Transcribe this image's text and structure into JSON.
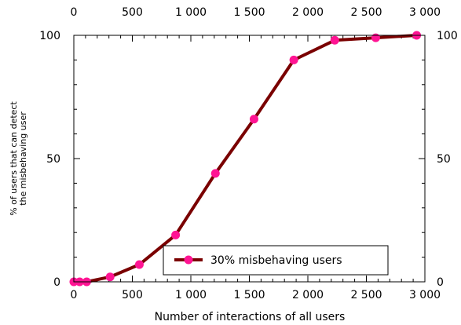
{
  "chart_data": {
    "type": "line",
    "xlabel": "Number of interactions of all users",
    "ylabel_lines": [
      "% of users that can detect",
      "the misbehaving user"
    ],
    "xlim": [
      0,
      3000
    ],
    "ylim": [
      0,
      100
    ],
    "x_ticks": [
      0,
      500,
      1000,
      1500,
      2000,
      2500,
      3000
    ],
    "x_tick_labels": [
      "0",
      "500",
      "1 000",
      "1 500",
      "2 000",
      "2 500",
      "3 000"
    ],
    "y_ticks": [
      0,
      50,
      100
    ],
    "y_tick_labels": [
      "0",
      "50",
      "100"
    ],
    "legend_position": "bottom-right",
    "series": [
      {
        "name": "30% misbehaving users",
        "line_color": "#7a0000",
        "marker_color": "#ff1493",
        "x": [
          0,
          50,
          110,
          310,
          560,
          870,
          1210,
          1540,
          1880,
          2230,
          2580,
          2930
        ],
        "y": [
          0,
          0,
          0,
          2,
          7,
          19,
          44,
          66,
          90,
          98,
          99,
          100
        ]
      }
    ]
  }
}
